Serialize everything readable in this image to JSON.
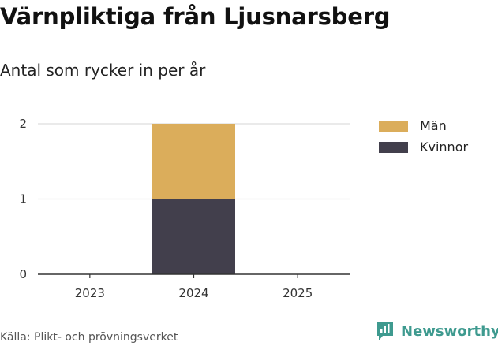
{
  "header": {
    "title": "Värnpliktiga från Ljusnarsberg",
    "subtitle": "Antal som rycker in per år"
  },
  "footer": {
    "source": "Källa: Plikt- och prövningsverket",
    "brand": "Newsworthy",
    "brand_icon": "newsworthy-logo-icon",
    "brand_color": "#3e9a8f"
  },
  "chart_data": {
    "type": "bar",
    "stacked": true,
    "categories": [
      "2023",
      "2024",
      "2025"
    ],
    "series": [
      {
        "name": "Kvinnor",
        "values": [
          0,
          1,
          0
        ],
        "color": "#423f4c"
      },
      {
        "name": "Män",
        "values": [
          0,
          1,
          0
        ],
        "color": "#dbad5b"
      }
    ],
    "legend_order": [
      "Män",
      "Kvinnor"
    ],
    "title": "Värnpliktiga från Ljusnarsberg",
    "subtitle": "Antal som rycker in per år",
    "xlabel": "",
    "ylabel": "",
    "ylim": [
      0,
      2
    ],
    "yticks": [
      0,
      1,
      2
    ],
    "grid": true,
    "legend_position": "right"
  }
}
